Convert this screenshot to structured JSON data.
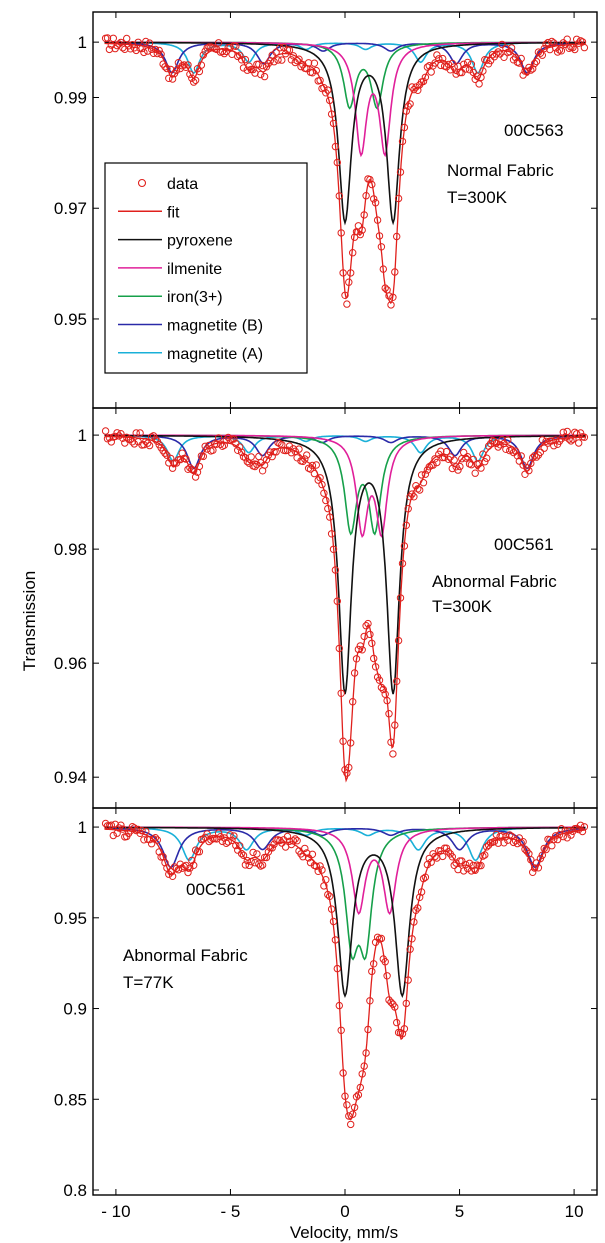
{
  "chart_data": {
    "type": "line",
    "xlabel": "Velocity, mm/s",
    "ylabel": "Transmission",
    "x_tick_labels": [
      "- 10",
      "- 5",
      "0",
      "5",
      "10"
    ],
    "x_ticks": [
      -10,
      -5,
      0,
      5,
      10
    ],
    "xlim": [
      -11,
      11
    ],
    "legend": {
      "placement": "inside left of top panel",
      "entries": [
        {
          "label": "data",
          "color": "#e0201c",
          "marker": "circle"
        },
        {
          "label": "fit",
          "color": "#e0201c",
          "marker": "line"
        },
        {
          "label": "pyroxene",
          "color": "#111111",
          "marker": "line"
        },
        {
          "label": "ilmenite",
          "color": "#e0209a",
          "marker": "line"
        },
        {
          "label": "iron(3+)",
          "color": "#16a04a",
          "marker": "line"
        },
        {
          "label": "magnetite (B)",
          "color": "#2a2aa8",
          "marker": "line"
        },
        {
          "label": "magnetite (A)",
          "color": "#1ab0d8",
          "marker": "line"
        }
      ]
    },
    "panels": [
      {
        "sample": "00C563",
        "fabric": "Normal Fabric",
        "temperature": "T=300K",
        "ylim": [
          0.935,
          1.004
        ],
        "y_ticks": [
          0.95,
          0.97,
          0.99,
          1
        ],
        "y_tick_labels": [
          "0.95",
          "0.97",
          "0.99",
          "1"
        ],
        "components": [
          {
            "name": "pyroxene",
            "lines": [
              {
                "center": 0.0,
                "depth": 0.0318,
                "width": 0.34
              },
              {
                "center": 2.1,
                "depth": 0.0318,
                "width": 0.34
              }
            ]
          },
          {
            "name": "ilmenite",
            "lines": [
              {
                "center": 0.7,
                "depth": 0.019,
                "width": 0.3
              },
              {
                "center": 1.75,
                "depth": 0.019,
                "width": 0.3
              }
            ]
          },
          {
            "name": "iron(3+)",
            "lines": [
              {
                "center": 0.2,
                "depth": 0.0112,
                "width": 0.32
              },
              {
                "center": 1.4,
                "depth": 0.0112,
                "width": 0.32
              }
            ]
          },
          {
            "name": "magnetite (B)",
            "lines": [
              {
                "center": -7.55,
                "depth": 0.0055,
                "width": 0.35
              },
              {
                "center": -3.55,
                "depth": 0.0038,
                "width": 0.35
              },
              {
                "center": -0.95,
                "depth": 0.0015,
                "width": 0.35
              },
              {
                "center": 2.0,
                "depth": 0.0015,
                "width": 0.35
              },
              {
                "center": 4.85,
                "depth": 0.0038,
                "width": 0.35
              },
              {
                "center": 7.95,
                "depth": 0.0055,
                "width": 0.35
              }
            ]
          },
          {
            "name": "magnetite (A)",
            "lines": [
              {
                "center": -6.6,
                "depth": 0.0055,
                "width": 0.32
              },
              {
                "center": -4.2,
                "depth": 0.0035,
                "width": 0.32
              },
              {
                "center": -1.7,
                "depth": 0.0012,
                "width": 0.32
              },
              {
                "center": 0.9,
                "depth": 0.0012,
                "width": 0.32
              },
              {
                "center": 3.3,
                "depth": 0.0035,
                "width": 0.32
              },
              {
                "center": 5.8,
                "depth": 0.0055,
                "width": 0.32
              }
            ]
          }
        ]
      },
      {
        "sample": "00C561",
        "fabric": "Abnormal Fabric",
        "temperature": "T=300K",
        "ylim": [
          0.936,
          1.003
        ],
        "y_ticks": [
          0.94,
          0.96,
          0.98,
          1
        ],
        "y_tick_labels": [
          "0.94",
          "0.96",
          "0.98",
          "1"
        ],
        "components": [
          {
            "name": "pyroxene",
            "lines": [
              {
                "center": 0.0,
                "depth": 0.0443,
                "width": 0.34
              },
              {
                "center": 2.1,
                "depth": 0.0443,
                "width": 0.34
              }
            ]
          },
          {
            "name": "ilmenite",
            "lines": [
              {
                "center": 0.75,
                "depth": 0.016,
                "width": 0.3
              },
              {
                "center": 1.6,
                "depth": 0.016,
                "width": 0.3
              }
            ]
          },
          {
            "name": "iron(3+)",
            "lines": [
              {
                "center": 0.25,
                "depth": 0.016,
                "width": 0.32
              },
              {
                "center": 1.3,
                "depth": 0.016,
                "width": 0.32
              }
            ]
          },
          {
            "name": "magnetite (B)",
            "lines": [
              {
                "center": -6.6,
                "depth": 0.0058,
                "width": 0.35
              },
              {
                "center": -3.6,
                "depth": 0.0035,
                "width": 0.35
              },
              {
                "center": -1.0,
                "depth": 0.0012,
                "width": 0.35
              },
              {
                "center": 2.0,
                "depth": 0.0012,
                "width": 0.35
              },
              {
                "center": 4.8,
                "depth": 0.0035,
                "width": 0.35
              },
              {
                "center": 7.95,
                "depth": 0.0058,
                "width": 0.35
              }
            ]
          },
          {
            "name": "magnetite (A)",
            "lines": [
              {
                "center": -7.5,
                "depth": 0.0045,
                "width": 0.32
              },
              {
                "center": -4.2,
                "depth": 0.003,
                "width": 0.32
              },
              {
                "center": -1.7,
                "depth": 0.001,
                "width": 0.32
              },
              {
                "center": 0.9,
                "depth": 0.001,
                "width": 0.32
              },
              {
                "center": 3.3,
                "depth": 0.003,
                "width": 0.32
              },
              {
                "center": 5.8,
                "depth": 0.0045,
                "width": 0.32
              }
            ]
          }
        ]
      },
      {
        "sample": "00C561",
        "fabric": "Abnormal Fabric",
        "temperature": "T=77K",
        "ylim": [
          0.8,
          1.005
        ],
        "y_ticks": [
          0.8,
          0.85,
          0.9,
          0.95,
          1
        ],
        "y_tick_labels": [
          "0.8",
          "0.85",
          "0.9",
          "0.95",
          "1"
        ],
        "components": [
          {
            "name": "pyroxene",
            "lines": [
              {
                "center": 0.0,
                "depth": 0.091,
                "width": 0.38
              },
              {
                "center": 2.5,
                "depth": 0.091,
                "width": 0.38
              }
            ]
          },
          {
            "name": "ilmenite",
            "lines": [
              {
                "center": 0.6,
                "depth": 0.045,
                "width": 0.34
              },
              {
                "center": 1.95,
                "depth": 0.045,
                "width": 0.34
              }
            ]
          },
          {
            "name": "iron(3+)",
            "lines": [
              {
                "center": 0.3,
                "depth": 0.058,
                "width": 0.34
              },
              {
                "center": 0.9,
                "depth": 0.058,
                "width": 0.34
              }
            ]
          },
          {
            "name": "magnetite (B)",
            "lines": [
              {
                "center": -7.6,
                "depth": 0.022,
                "width": 0.42
              },
              {
                "center": -3.6,
                "depth": 0.012,
                "width": 0.42
              },
              {
                "center": -1.0,
                "depth": 0.004,
                "width": 0.42
              },
              {
                "center": 2.0,
                "depth": 0.004,
                "width": 0.42
              },
              {
                "center": 5.0,
                "depth": 0.012,
                "width": 0.42
              },
              {
                "center": 8.3,
                "depth": 0.022,
                "width": 0.42
              }
            ]
          },
          {
            "name": "magnetite (A)",
            "lines": [
              {
                "center": -6.8,
                "depth": 0.018,
                "width": 0.38
              },
              {
                "center": -4.3,
                "depth": 0.012,
                "width": 0.38
              },
              {
                "center": -1.7,
                "depth": 0.004,
                "width": 0.38
              },
              {
                "center": 1.0,
                "depth": 0.004,
                "width": 0.38
              },
              {
                "center": 3.2,
                "depth": 0.012,
                "width": 0.38
              },
              {
                "center": 5.7,
                "depth": 0.018,
                "width": 0.38
              }
            ]
          }
        ]
      }
    ]
  }
}
